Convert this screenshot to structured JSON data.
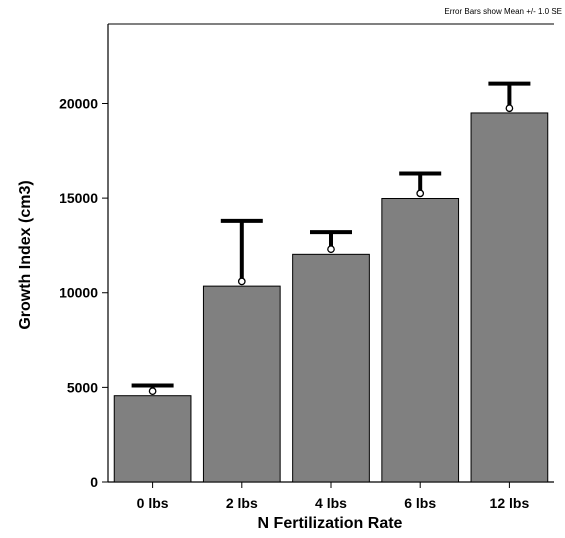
{
  "chart_data": {
    "type": "bar",
    "note": "Error Bars show Mean +/- 1.0 SE",
    "xlabel": "N Fertilization Rate",
    "ylabel": "Growth Index (cm3)",
    "categories": [
      "0 lbs",
      "2 lbs",
      "4 lbs",
      "6 lbs",
      "12 lbs"
    ],
    "values": [
      4560,
      10350,
      12030,
      14980,
      19500
    ],
    "means": [
      4800,
      10600,
      12300,
      15250,
      19750
    ],
    "error_upper": [
      5100,
      13800,
      13200,
      16300,
      21050
    ],
    "yticks": [
      0,
      5000,
      10000,
      15000,
      20000
    ],
    "ylim": [
      0,
      24200
    ],
    "grid": false,
    "colors": {
      "bar": "#808080",
      "bar_edge": "#000000",
      "error_bar": "#000000"
    }
  }
}
